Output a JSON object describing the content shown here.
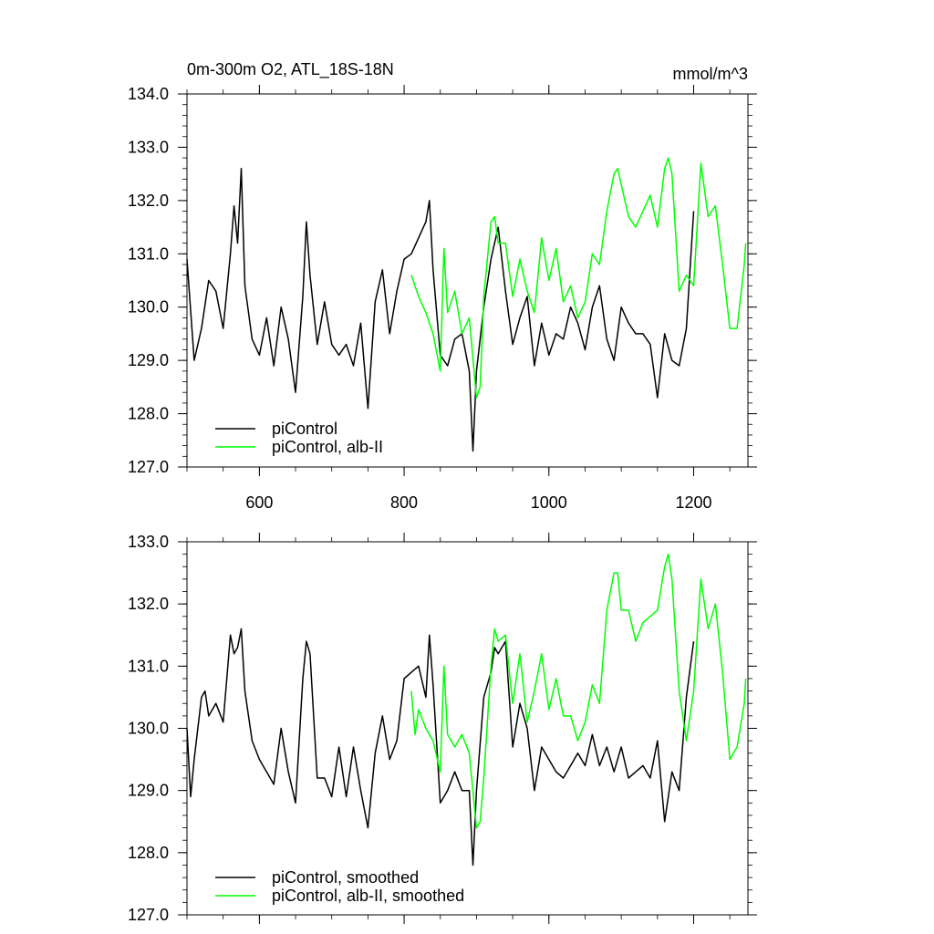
{
  "chart_data": [
    {
      "type": "line",
      "title": "0m-300m O2, ATL_18S-18N",
      "units": "mmol/m^3",
      "xlim": [
        500,
        1275
      ],
      "ylim": [
        127.0,
        134.0
      ],
      "x_ticks": [
        600,
        800,
        1000,
        1200
      ],
      "x_tick_labels": [
        "600",
        "800",
        "1000",
        "1200"
      ],
      "y_ticks": [
        127,
        128,
        129,
        130,
        131,
        132,
        133,
        134
      ],
      "y_tick_labels": [
        "127.0",
        "128.0",
        "129.0",
        "130.0",
        "131.0",
        "132.0",
        "133.0",
        "134.0"
      ],
      "legend_position": "bottom-left",
      "series": [
        {
          "name": "piControl",
          "color": "#000000",
          "x": [
            500,
            510,
            520,
            530,
            540,
            550,
            560,
            565,
            570,
            575,
            580,
            590,
            600,
            610,
            620,
            630,
            640,
            650,
            660,
            665,
            670,
            680,
            690,
            700,
            710,
            720,
            730,
            740,
            750,
            760,
            770,
            780,
            790,
            800,
            810,
            820,
            830,
            835,
            840,
            850,
            860,
            870,
            880,
            890,
            895,
            900,
            910,
            920,
            930,
            940,
            950,
            960,
            970,
            980,
            990,
            1000,
            1010,
            1020,
            1030,
            1040,
            1050,
            1060,
            1070,
            1080,
            1090,
            1100,
            1110,
            1120,
            1130,
            1140,
            1150,
            1160,
            1170,
            1180,
            1190,
            1200
          ],
          "values": [
            130.9,
            129.0,
            129.6,
            130.5,
            130.3,
            129.6,
            131.0,
            131.9,
            131.2,
            132.6,
            130.4,
            129.4,
            129.1,
            129.8,
            128.9,
            130.0,
            129.4,
            128.4,
            130.2,
            131.6,
            130.6,
            129.3,
            130.1,
            129.3,
            129.1,
            129.3,
            128.9,
            129.7,
            128.1,
            130.1,
            130.7,
            129.5,
            130.3,
            130.9,
            131.0,
            131.3,
            131.6,
            132.0,
            130.7,
            129.1,
            128.9,
            129.4,
            129.5,
            128.8,
            127.3,
            128.8,
            130.0,
            130.9,
            131.5,
            130.3,
            129.3,
            129.8,
            130.2,
            128.9,
            129.7,
            129.1,
            129.5,
            129.4,
            130.0,
            129.7,
            129.2,
            130.0,
            130.4,
            129.4,
            129.0,
            130.0,
            129.7,
            129.5,
            129.5,
            129.3,
            128.3,
            129.5,
            129.0,
            128.9,
            129.6,
            131.8
          ]
        },
        {
          "name": "piControl, alb-II",
          "color": "#00ff00",
          "x": [
            810,
            820,
            830,
            840,
            850,
            855,
            860,
            870,
            880,
            890,
            900,
            905,
            910,
            920,
            925,
            930,
            940,
            950,
            960,
            970,
            980,
            990,
            1000,
            1010,
            1020,
            1030,
            1040,
            1050,
            1060,
            1070,
            1080,
            1090,
            1095,
            1100,
            1110,
            1120,
            1130,
            1140,
            1150,
            1160,
            1165,
            1170,
            1180,
            1190,
            1200,
            1210,
            1220,
            1230,
            1240,
            1250,
            1260,
            1270,
            1272
          ],
          "values": [
            130.6,
            130.2,
            129.9,
            129.5,
            128.8,
            131.1,
            129.9,
            130.3,
            129.5,
            129.8,
            128.3,
            128.5,
            130.2,
            131.6,
            131.7,
            131.2,
            131.2,
            130.2,
            130.9,
            130.3,
            129.9,
            131.3,
            130.5,
            131.1,
            130.1,
            130.4,
            129.8,
            130.1,
            131.0,
            130.8,
            131.8,
            132.5,
            132.6,
            132.3,
            131.7,
            131.5,
            131.8,
            132.1,
            131.5,
            132.6,
            132.8,
            132.5,
            130.3,
            130.6,
            130.4,
            132.7,
            131.7,
            131.9,
            130.8,
            129.6,
            129.6,
            130.8,
            131.2
          ]
        }
      ]
    },
    {
      "type": "line",
      "xlim": [
        500,
        1275
      ],
      "ylim": [
        127.0,
        133.0
      ],
      "x_ticks": [
        600,
        800,
        1000,
        1200
      ],
      "y_ticks": [
        127,
        128,
        129,
        130,
        131,
        132,
        133
      ],
      "y_tick_labels": [
        "127.0",
        "128.0",
        "129.0",
        "130.0",
        "131.0",
        "132.0",
        "133.0"
      ],
      "legend_position": "bottom-left",
      "series": [
        {
          "name": "piControl, smoothed",
          "color": "#000000",
          "x": [
            500,
            505,
            510,
            520,
            525,
            530,
            540,
            550,
            560,
            565,
            570,
            575,
            580,
            590,
            600,
            610,
            620,
            630,
            640,
            650,
            660,
            665,
            670,
            680,
            690,
            700,
            710,
            720,
            730,
            740,
            750,
            760,
            770,
            780,
            790,
            800,
            810,
            820,
            830,
            835,
            840,
            850,
            860,
            870,
            880,
            890,
            895,
            900,
            910,
            920,
            925,
            930,
            940,
            950,
            960,
            970,
            980,
            990,
            1000,
            1010,
            1020,
            1030,
            1040,
            1050,
            1060,
            1070,
            1080,
            1090,
            1100,
            1110,
            1120,
            1130,
            1140,
            1150,
            1160,
            1170,
            1180,
            1190,
            1200
          ],
          "values": [
            130.0,
            128.9,
            129.5,
            130.5,
            130.6,
            130.2,
            130.4,
            130.1,
            131.5,
            131.2,
            131.3,
            131.6,
            130.6,
            129.8,
            129.5,
            129.3,
            129.1,
            130.0,
            129.3,
            128.8,
            130.8,
            131.4,
            131.2,
            129.2,
            129.2,
            128.9,
            129.7,
            128.9,
            129.7,
            129.0,
            128.4,
            129.6,
            130.2,
            129.5,
            129.8,
            130.8,
            130.9,
            131.0,
            130.5,
            131.5,
            130.7,
            128.8,
            129.0,
            129.3,
            129.0,
            129.0,
            127.8,
            129.0,
            130.5,
            130.9,
            131.3,
            131.2,
            131.4,
            129.7,
            130.4,
            130.0,
            129.0,
            129.7,
            129.5,
            129.3,
            129.2,
            129.4,
            129.6,
            129.4,
            129.9,
            129.4,
            129.7,
            129.3,
            129.7,
            129.2,
            129.3,
            129.4,
            129.2,
            129.8,
            128.5,
            129.3,
            129.0,
            130.5,
            131.4
          ]
        },
        {
          "name": "piControl, alb-II, smoothed",
          "color": "#00ff00",
          "x": [
            810,
            815,
            820,
            830,
            840,
            850,
            855,
            860,
            870,
            880,
            890,
            900,
            905,
            910,
            920,
            925,
            930,
            940,
            950,
            960,
            970,
            980,
            990,
            1000,
            1010,
            1020,
            1030,
            1040,
            1050,
            1060,
            1070,
            1080,
            1090,
            1095,
            1100,
            1110,
            1120,
            1130,
            1140,
            1150,
            1160,
            1165,
            1170,
            1180,
            1190,
            1200,
            1210,
            1220,
            1230,
            1240,
            1250,
            1260,
            1270,
            1272
          ],
          "values": [
            130.6,
            129.9,
            130.3,
            130.0,
            129.8,
            129.3,
            131.0,
            129.9,
            129.7,
            129.9,
            129.6,
            128.4,
            128.5,
            129.2,
            131.0,
            131.6,
            131.4,
            131.5,
            130.4,
            131.2,
            130.1,
            130.6,
            131.2,
            130.3,
            130.8,
            130.2,
            130.2,
            129.8,
            130.1,
            130.7,
            130.4,
            131.9,
            132.5,
            132.5,
            131.9,
            131.9,
            131.4,
            131.7,
            131.8,
            131.9,
            132.6,
            132.8,
            132.4,
            130.6,
            129.8,
            130.6,
            132.4,
            131.6,
            132.0,
            130.9,
            129.5,
            129.7,
            130.4,
            130.8
          ]
        }
      ]
    }
  ]
}
